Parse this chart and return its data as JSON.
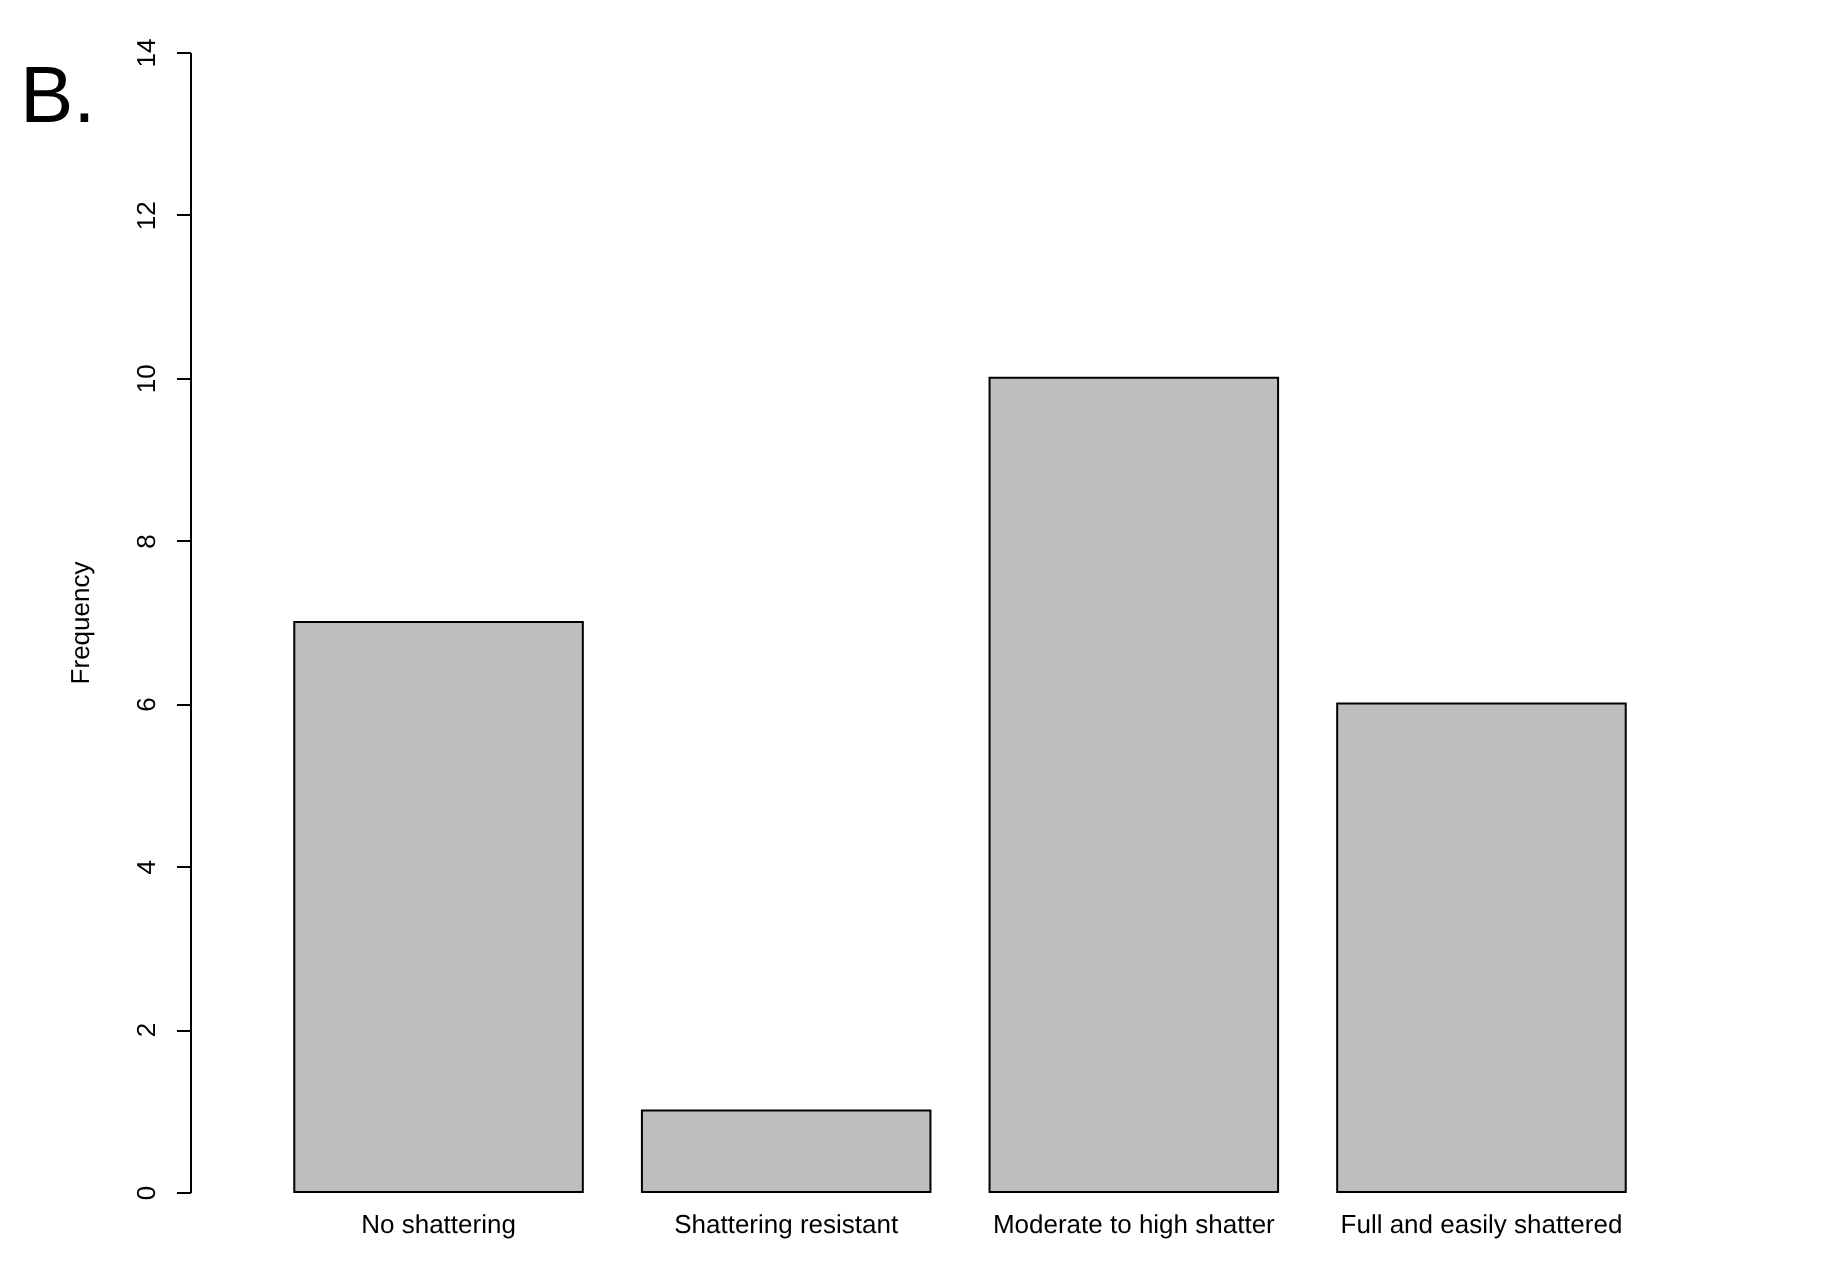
{
  "chart_data": {
    "type": "bar",
    "title": "B.",
    "ylabel": "Frequency",
    "categories": [
      "No shattering",
      "Shattering resistant",
      "Moderate to high shatter",
      "Full and easily shattered"
    ],
    "values": [
      7,
      1,
      10,
      6
    ],
    "color": "#bebebe",
    "ylim": [
      0,
      14
    ],
    "yticks": [
      0,
      2,
      4,
      6,
      8,
      10,
      12,
      14
    ],
    "grid": false
  }
}
